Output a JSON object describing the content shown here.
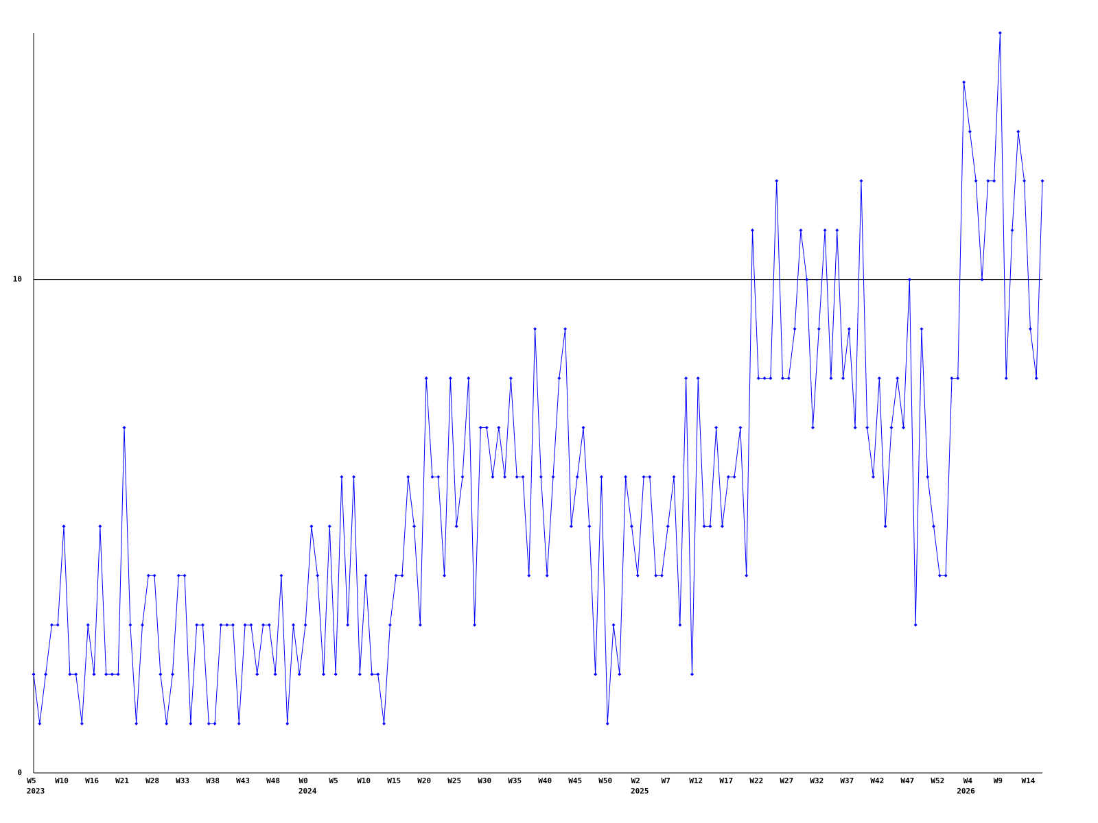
{
  "chart_data": {
    "type": "line",
    "color": "#0000ff",
    "axis_color": "#000000",
    "ylim": [
      0,
      15
    ],
    "yticks": [
      0,
      10
    ],
    "grid": true,
    "categories": [
      "W5",
      null,
      null,
      null,
      null,
      "W10",
      null,
      null,
      null,
      null,
      "W16",
      null,
      null,
      null,
      null,
      "W21",
      null,
      null,
      null,
      null,
      "W28",
      null,
      null,
      null,
      null,
      "W33",
      null,
      null,
      null,
      null,
      "W38",
      null,
      null,
      null,
      null,
      "W43",
      null,
      null,
      null,
      null,
      "W48",
      null,
      null,
      null,
      null,
      "W0",
      null,
      null,
      null,
      null,
      "W5",
      null,
      null,
      null,
      null,
      "W10",
      null,
      null,
      null,
      null,
      "W15",
      null,
      null,
      null,
      null,
      "W20",
      null,
      null,
      null,
      null,
      "W25",
      null,
      null,
      null,
      null,
      "W30",
      null,
      null,
      null,
      null,
      "W35",
      null,
      null,
      null,
      null,
      "W40",
      null,
      null,
      null,
      null,
      "W45",
      null,
      null,
      null,
      null,
      "W50",
      null,
      null,
      null,
      null,
      "W2",
      null,
      null,
      null,
      null,
      "W7",
      null,
      null,
      null,
      null,
      "W12",
      null,
      null,
      null,
      null,
      "W17",
      null,
      null,
      null,
      null,
      "W22",
      null,
      null,
      null,
      null,
      "W27",
      null,
      null,
      null,
      null,
      "W32",
      null,
      null,
      null,
      null,
      "W37",
      null,
      null,
      null,
      null,
      "W42",
      null,
      null,
      null,
      null,
      "W47",
      null,
      null,
      null,
      null,
      "W52",
      null,
      null,
      null,
      null,
      "W4",
      null,
      null,
      null,
      null,
      "W9",
      null,
      null,
      null,
      null,
      "W14",
      null,
      null
    ],
    "years": [
      "2023",
      null,
      null,
      null,
      null,
      null,
      null,
      null,
      null,
      null,
      null,
      null,
      null,
      null,
      null,
      null,
      null,
      null,
      null,
      null,
      null,
      null,
      null,
      null,
      null,
      null,
      null,
      null,
      null,
      null,
      null,
      null,
      null,
      null,
      null,
      null,
      null,
      null,
      null,
      null,
      null,
      null,
      null,
      null,
      null,
      "2024",
      null,
      null,
      null,
      null,
      null,
      null,
      null,
      null,
      null,
      null,
      null,
      null,
      null,
      null,
      null,
      null,
      null,
      null,
      null,
      null,
      null,
      null,
      null,
      null,
      null,
      null,
      null,
      null,
      null,
      null,
      null,
      null,
      null,
      null,
      null,
      null,
      null,
      null,
      null,
      null,
      null,
      null,
      null,
      null,
      null,
      null,
      null,
      null,
      null,
      null,
      null,
      null,
      null,
      null,
      "2025",
      null,
      null,
      null,
      null,
      null,
      null,
      null,
      null,
      null,
      null,
      null,
      null,
      null,
      null,
      null,
      null,
      null,
      null,
      null,
      null,
      null,
      null,
      null,
      null,
      null,
      null,
      null,
      null,
      null,
      null,
      null,
      null,
      null,
      null,
      null,
      null,
      null,
      null,
      null,
      null,
      null,
      null,
      null,
      null,
      null,
      null,
      null,
      null,
      null,
      null,
      null,
      null,
      null,
      "2026",
      null,
      null,
      null,
      null,
      null,
      null,
      null,
      null,
      null,
      null,
      null,
      null
    ],
    "values": [
      2,
      1,
      2,
      3,
      3,
      5,
      2,
      2,
      1,
      3,
      2,
      5,
      2,
      2,
      2,
      7,
      3,
      1,
      3,
      4,
      4,
      2,
      1,
      2,
      4,
      4,
      1,
      3,
      3,
      1,
      1,
      3,
      3,
      3,
      1,
      3,
      3,
      2,
      3,
      3,
      2,
      4,
      1,
      3,
      2,
      3,
      5,
      4,
      2,
      5,
      2,
      6,
      3,
      6,
      2,
      4,
      2,
      2,
      1,
      3,
      4,
      4,
      6,
      5,
      3,
      8,
      6,
      6,
      4,
      8,
      5,
      6,
      8,
      3,
      7,
      7,
      6,
      7,
      6,
      8,
      6,
      6,
      4,
      9,
      6,
      4,
      6,
      8,
      9,
      5,
      6,
      7,
      5,
      2,
      6,
      1,
      3,
      2,
      6,
      5,
      4,
      6,
      6,
      4,
      4,
      5,
      6,
      3,
      8,
      2,
      8,
      5,
      5,
      7,
      5,
      6,
      6,
      7,
      4,
      11,
      8,
      8,
      8,
      12,
      8,
      8,
      9,
      11,
      10,
      7,
      9,
      11,
      8,
      11,
      8,
      9,
      7,
      12,
      7,
      6,
      8,
      5,
      7,
      8,
      7,
      10,
      3,
      9,
      6,
      5,
      4,
      4,
      8,
      8,
      14,
      13,
      12,
      10,
      12,
      12,
      15,
      8,
      11,
      13,
      12,
      9,
      8,
      12
    ]
  }
}
